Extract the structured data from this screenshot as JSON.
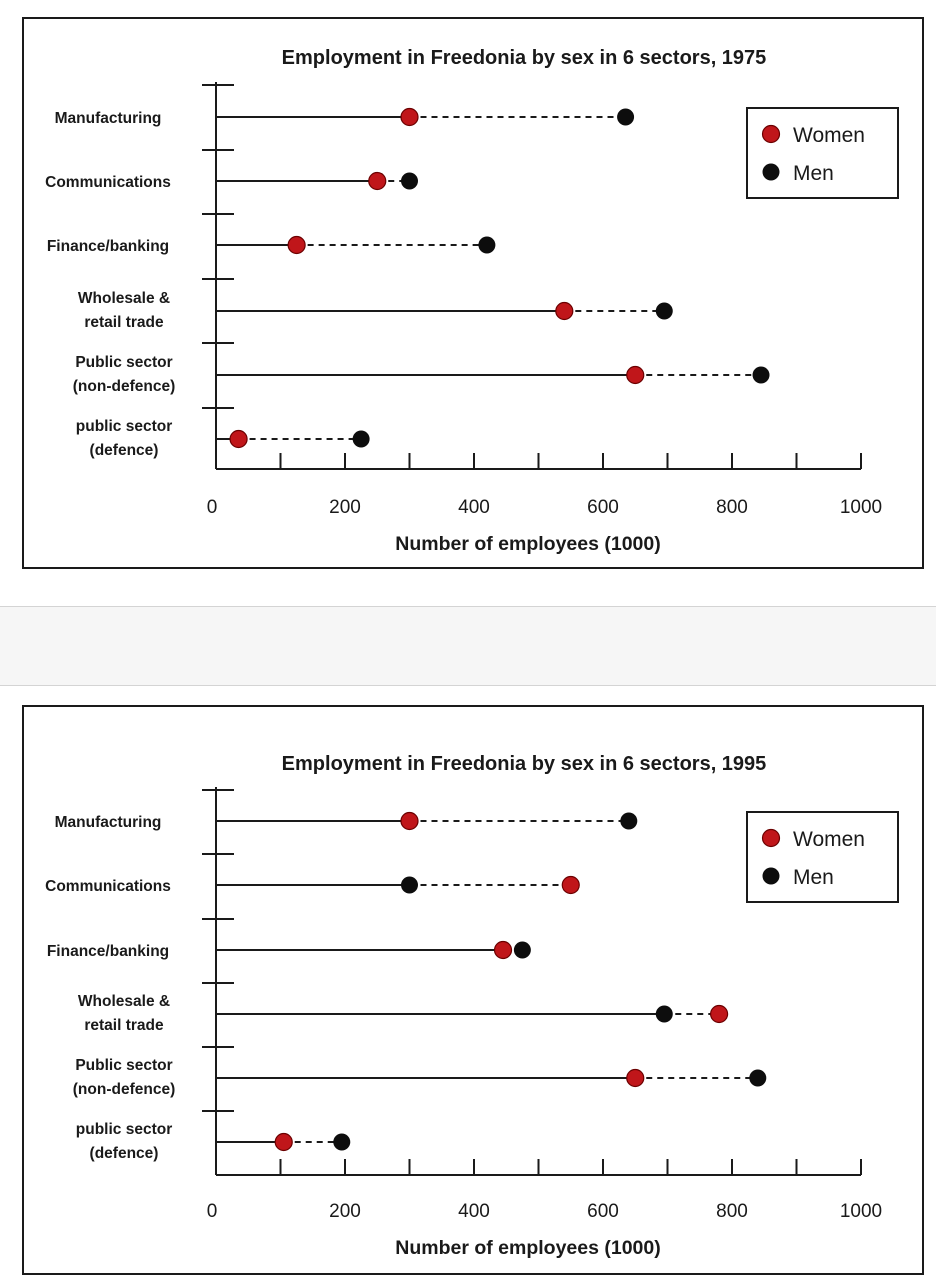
{
  "colors": {
    "women": "#c0161a",
    "men": "#0d0d0d",
    "axis": "#1a1a1a"
  },
  "chart_data": [
    {
      "type": "dot-plot",
      "title": "Employment in Freedonia by sex in 6 sectors, 1975",
      "xlabel": "Number of employees (1000)",
      "ylabel": "",
      "xlim": [
        0,
        1000
      ],
      "xticks": [
        0,
        200,
        400,
        600,
        800,
        1000
      ],
      "legend_position": "top-right",
      "categories": [
        [
          "Manufacturing"
        ],
        [
          "Communications"
        ],
        [
          "Finance/banking"
        ],
        [
          "Wholesale &",
          "retail trade"
        ],
        [
          "Public sector",
          "(non-defence)"
        ],
        [
          "public sector",
          "(defence)"
        ]
      ],
      "series": [
        {
          "name": "Women",
          "values": [
            300,
            250,
            125,
            540,
            650,
            35
          ]
        },
        {
          "name": "Men",
          "values": [
            635,
            300,
            420,
            695,
            845,
            225
          ]
        }
      ]
    },
    {
      "type": "dot-plot",
      "title": "Employment in Freedonia by sex in 6 sectors, 1995",
      "xlabel": "Number of employees (1000)",
      "ylabel": "",
      "xlim": [
        0,
        1000
      ],
      "xticks": [
        0,
        200,
        400,
        600,
        800,
        1000
      ],
      "legend_position": "top-right",
      "categories": [
        [
          "Manufacturing"
        ],
        [
          "Communications"
        ],
        [
          "Finance/banking"
        ],
        [
          "Wholesale &",
          "retail trade"
        ],
        [
          "Public sector",
          "(non-defence)"
        ],
        [
          "public sector",
          "(defence)"
        ]
      ],
      "series": [
        {
          "name": "Women",
          "values": [
            300,
            550,
            445,
            780,
            650,
            105
          ]
        },
        {
          "name": "Men",
          "values": [
            640,
            300,
            475,
            695,
            840,
            195
          ]
        }
      ]
    }
  ]
}
